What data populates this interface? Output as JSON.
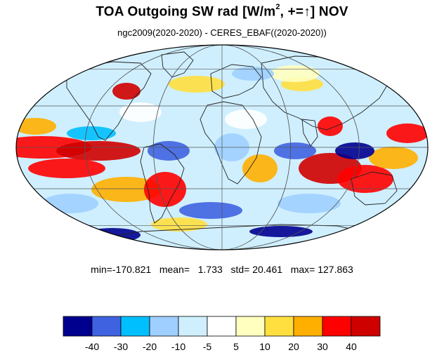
{
  "title": {
    "prefix": "TOA Outgoing SW rad [W/m",
    "superscript": "2",
    "suffix": ", +=↑] NOV"
  },
  "subtitle": "ngc2009(2020-2020) - CERES_EBAF((2020-2020))",
  "stats": {
    "min_label": "min=",
    "min": "-170.821",
    "mean_label": "mean=",
    "mean": "1.733",
    "std_label": "std=",
    "std": "20.461",
    "max_label": "max=",
    "max": "127.863"
  },
  "colorbar": {
    "colors": [
      "#00008f",
      "#3f63e0",
      "#00bfff",
      "#9fcfff",
      "#cfefff",
      "#ffffff",
      "#ffffbf",
      "#ffdf3f",
      "#ffaf00",
      "#ff0000",
      "#cf0000"
    ],
    "labels": [
      "-40",
      "-30",
      "-20",
      "-10",
      "-5",
      "5",
      "10",
      "20",
      "30",
      "40"
    ]
  }
}
